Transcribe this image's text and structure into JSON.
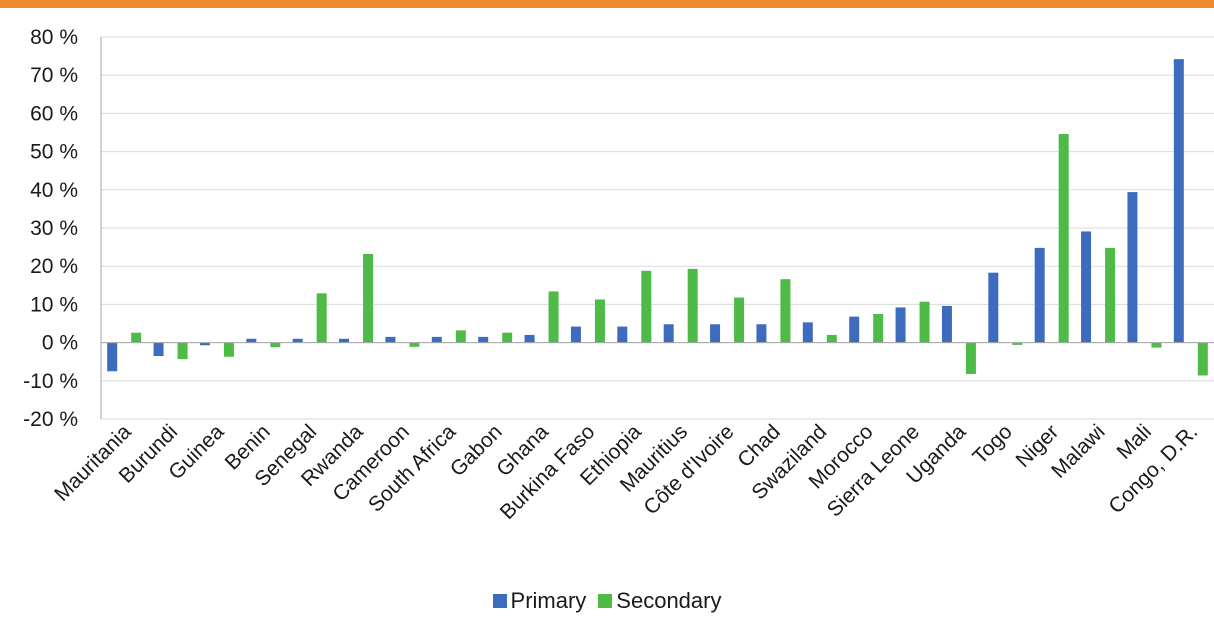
{
  "colors": {
    "accent_bar": "#f08a2f",
    "primary": "#3d6cbf",
    "secondary": "#4dbb45",
    "grid": "#d9d9d9",
    "axis": "#a6a6a6"
  },
  "chart_data": {
    "type": "bar",
    "categories": [
      "Mauritania",
      "Burundi",
      "Guinea",
      "Benin",
      "Senegal",
      "Rwanda",
      "Cameroon",
      "South Africa",
      "Gabon",
      "Ghana",
      "Burkina Faso",
      "Ethiopia",
      "Mauritius",
      "Côte d'Ivoire",
      "Chad",
      "Swaziland",
      "Morocco",
      "Sierra Leone",
      "Uganda",
      "Togo",
      "Niger",
      "Malawi",
      "Mali",
      "Congo, D.R."
    ],
    "series": [
      {
        "name": "Primary",
        "color": "#3d6cbf",
        "values": [
          -7.5,
          -3.5,
          -0.7,
          1.0,
          1.0,
          1.0,
          1.5,
          1.5,
          1.5,
          2.0,
          4.2,
          4.2,
          4.8,
          4.8,
          4.8,
          5.3,
          6.8,
          9.2,
          9.6,
          18.3,
          24.8,
          29.1,
          39.4,
          74.2
        ]
      },
      {
        "name": "Secondary",
        "color": "#4dbb45",
        "values": [
          2.6,
          -4.3,
          -3.7,
          -1.2,
          12.9,
          23.2,
          -1.1,
          3.2,
          2.6,
          13.4,
          11.3,
          18.8,
          19.3,
          11.8,
          16.6,
          2.0,
          7.5,
          10.7,
          -8.2,
          -0.6,
          54.6,
          24.8,
          -1.3,
          -8.6
        ]
      }
    ],
    "ylim": [
      -20,
      80
    ],
    "yticks": [
      -20,
      -10,
      0,
      10,
      20,
      30,
      40,
      50,
      60,
      70,
      80
    ],
    "ytick_labels": [
      "-20 %",
      "-10 %",
      "0 %",
      "10 %",
      "20 %",
      "30 %",
      "40 %",
      "50 %",
      "60 %",
      "70 %",
      "80 %"
    ],
    "grid": true,
    "legend_position": "bottom",
    "title": "",
    "xlabel": "",
    "ylabel": ""
  },
  "legend": {
    "primary_label": "Primary",
    "secondary_label": "Secondary"
  }
}
